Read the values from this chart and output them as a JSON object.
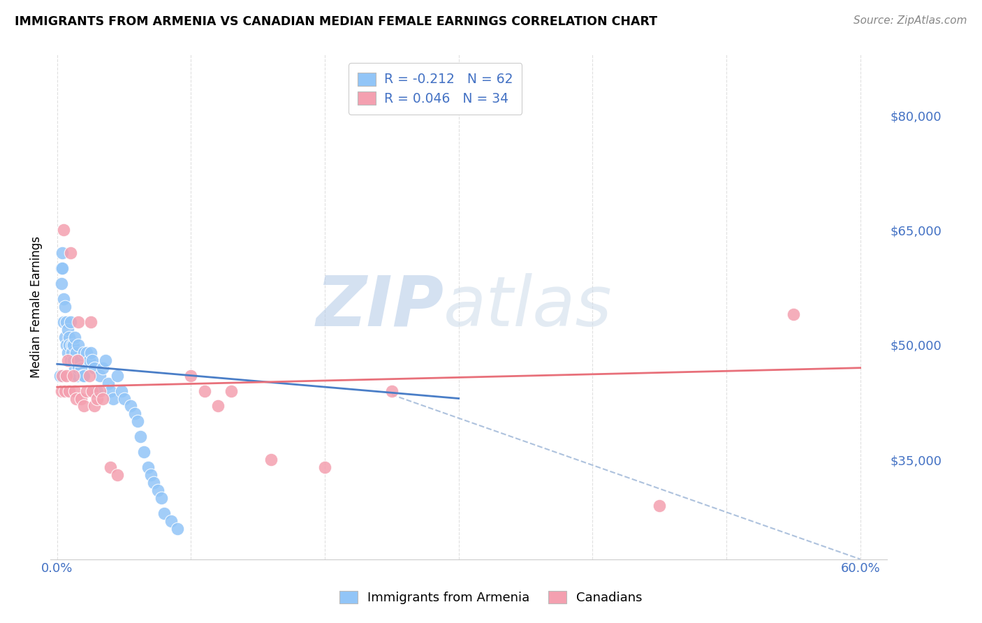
{
  "title": "IMMIGRANTS FROM ARMENIA VS CANADIAN MEDIAN FEMALE EARNINGS CORRELATION CHART",
  "source": "Source: ZipAtlas.com",
  "ylabel": "Median Female Earnings",
  "watermark_zip": "ZIP",
  "watermark_atlas": "atlas",
  "legend_blue_r": "R = -0.212",
  "legend_blue_n": "N = 62",
  "legend_pink_r": "R = 0.046",
  "legend_pink_n": "N = 34",
  "blue_color": "#92C5F7",
  "pink_color": "#F4A0B0",
  "blue_line_color": "#4A7EC7",
  "pink_line_color": "#E8707A",
  "dashed_line_color": "#A0B8D8",
  "background_color": "#FFFFFF",
  "grid_color": "#DDDDDD",
  "blue_scatter_x": [
    0.002,
    0.003,
    0.003,
    0.004,
    0.004,
    0.005,
    0.005,
    0.006,
    0.006,
    0.007,
    0.007,
    0.008,
    0.008,
    0.009,
    0.009,
    0.01,
    0.01,
    0.011,
    0.011,
    0.012,
    0.012,
    0.013,
    0.013,
    0.014,
    0.014,
    0.015,
    0.015,
    0.016,
    0.016,
    0.017,
    0.018,
    0.019,
    0.02,
    0.02,
    0.022,
    0.024,
    0.025,
    0.026,
    0.028,
    0.03,
    0.032,
    0.034,
    0.036,
    0.038,
    0.04,
    0.042,
    0.045,
    0.048,
    0.05,
    0.055,
    0.058,
    0.06,
    0.062,
    0.065,
    0.068,
    0.07,
    0.072,
    0.075,
    0.078,
    0.08,
    0.085,
    0.09
  ],
  "blue_scatter_y": [
    46000,
    60000,
    58000,
    62000,
    60000,
    56000,
    53000,
    55000,
    51000,
    53000,
    50000,
    52000,
    49000,
    51000,
    50000,
    53000,
    48000,
    50000,
    49000,
    50000,
    48000,
    51000,
    47000,
    49000,
    46000,
    48000,
    46000,
    50000,
    47000,
    48000,
    47000,
    46000,
    49000,
    46000,
    49000,
    48000,
    49000,
    48000,
    47000,
    44000,
    46000,
    47000,
    48000,
    45000,
    44000,
    43000,
    46000,
    44000,
    43000,
    42000,
    41000,
    40000,
    38000,
    36000,
    34000,
    33000,
    32000,
    31000,
    30000,
    28000,
    27000,
    26000
  ],
  "pink_scatter_x": [
    0.003,
    0.004,
    0.005,
    0.006,
    0.007,
    0.008,
    0.009,
    0.01,
    0.012,
    0.013,
    0.014,
    0.015,
    0.016,
    0.018,
    0.02,
    0.022,
    0.024,
    0.025,
    0.026,
    0.028,
    0.03,
    0.032,
    0.034,
    0.04,
    0.045,
    0.1,
    0.11,
    0.12,
    0.13,
    0.16,
    0.2,
    0.25,
    0.45,
    0.55
  ],
  "pink_scatter_y": [
    44000,
    46000,
    65000,
    44000,
    46000,
    48000,
    44000,
    62000,
    46000,
    44000,
    43000,
    48000,
    53000,
    43000,
    42000,
    44000,
    46000,
    53000,
    44000,
    42000,
    43000,
    44000,
    43000,
    34000,
    33000,
    46000,
    44000,
    42000,
    44000,
    35000,
    34000,
    44000,
    29000,
    54000
  ],
  "blue_trendline_x": [
    0.0,
    0.3
  ],
  "blue_trendline_y": [
    47500,
    43000
  ],
  "pink_trendline_x": [
    0.0,
    0.6
  ],
  "pink_trendline_y": [
    44500,
    47000
  ],
  "dashed_trendline_x": [
    0.25,
    0.6
  ],
  "dashed_trendline_y": [
    43500,
    22000
  ],
  "xlim": [
    -0.005,
    0.62
  ],
  "ylim": [
    22000,
    88000
  ],
  "y_tick_values": [
    35000,
    50000,
    65000,
    80000
  ],
  "y_tick_labels": [
    "$35,000",
    "$50,000",
    "$65,000",
    "$80,000"
  ],
  "x_tick_positions": [
    0.0,
    0.1,
    0.2,
    0.3,
    0.4,
    0.5,
    0.6
  ],
  "x_tick_labels": [
    "0.0%",
    "",
    "",
    "",
    "",
    "",
    "60.0%"
  ]
}
